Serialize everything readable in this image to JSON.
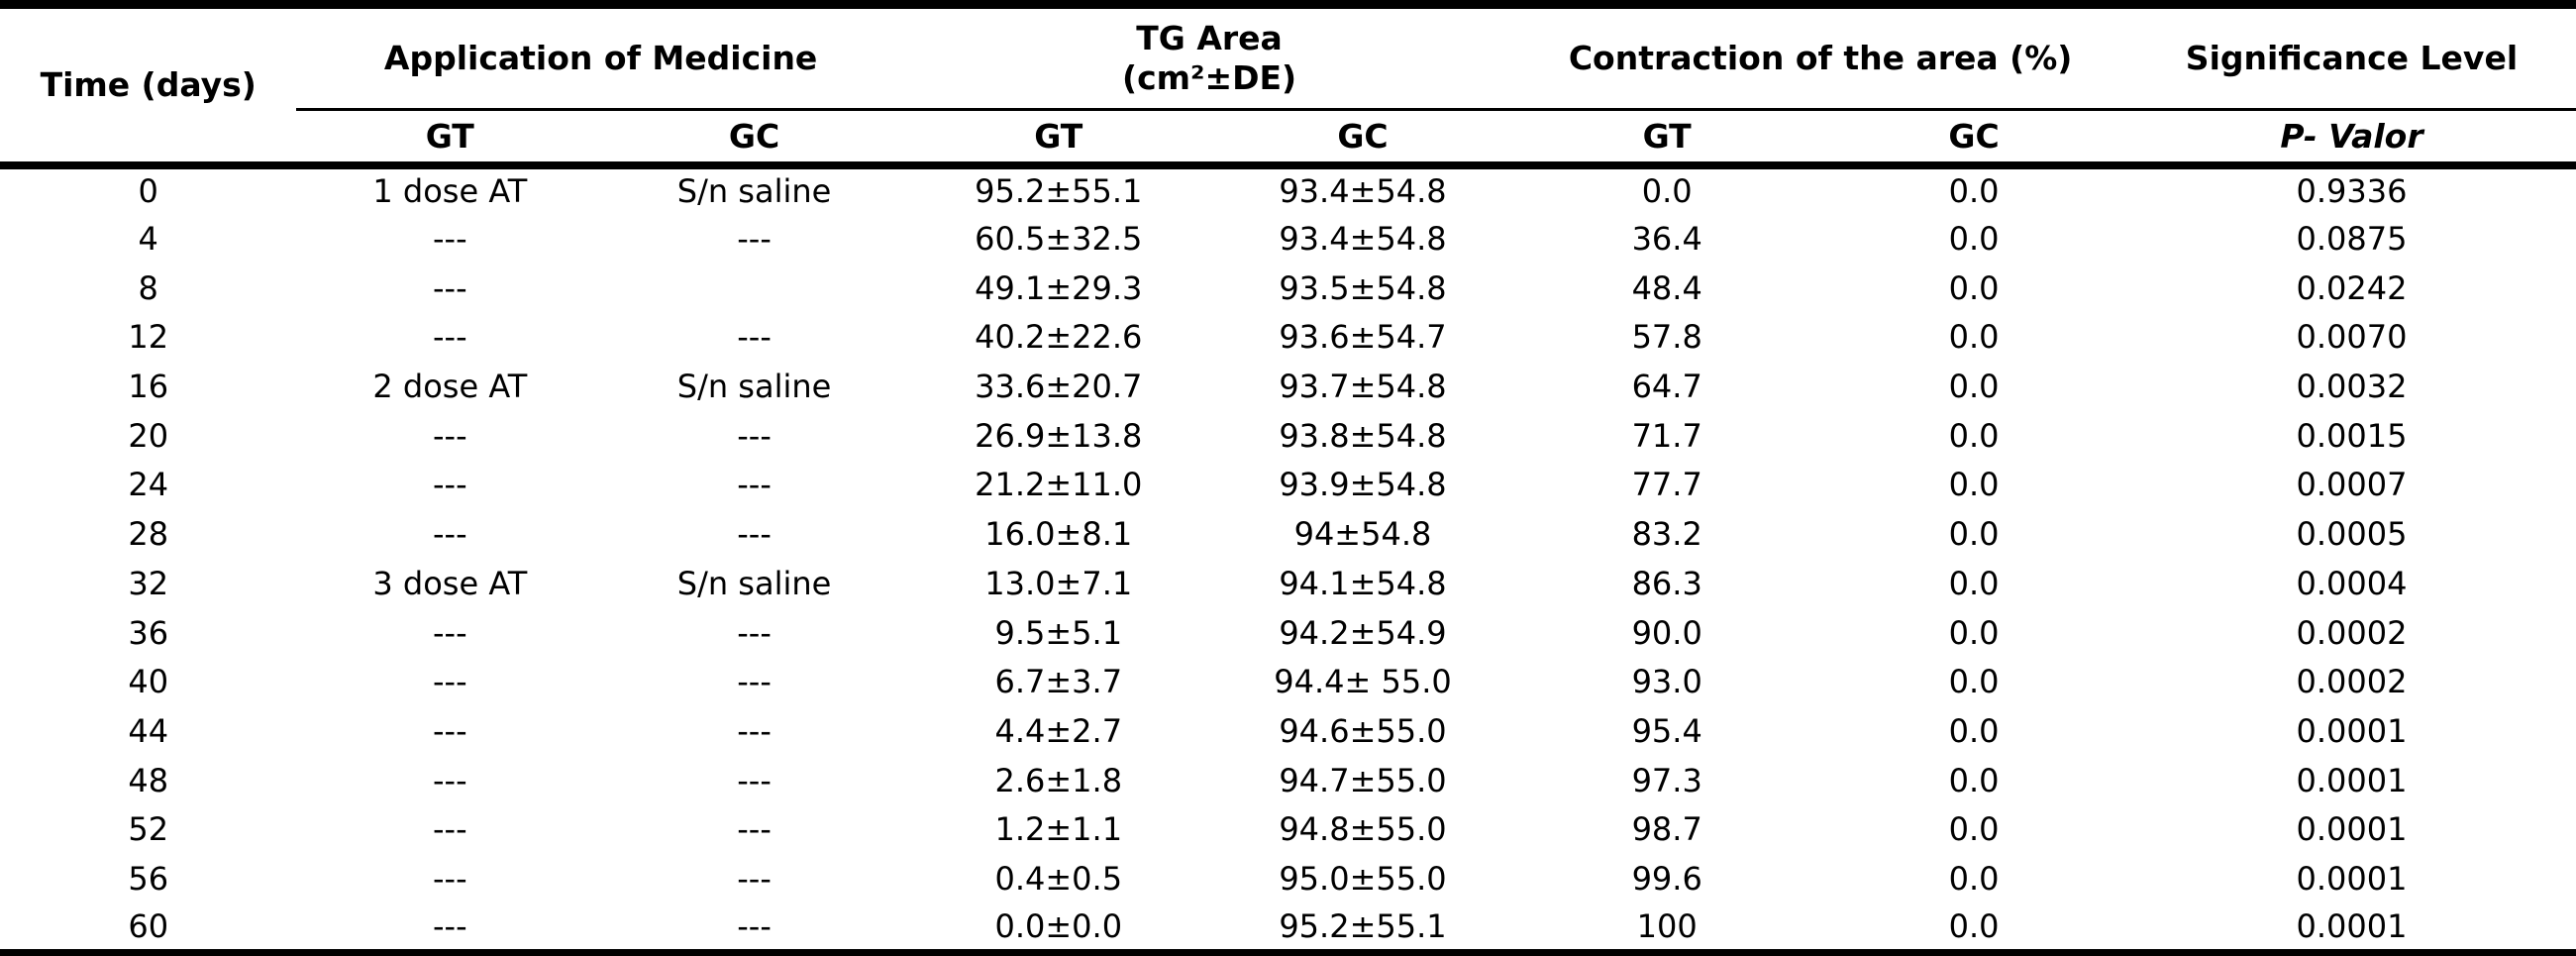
{
  "colors": {
    "text": "#000000",
    "background": "#ffffff",
    "rule": "#000000"
  },
  "table": {
    "header": {
      "time": "Time (days)",
      "application": "Application of Medicine",
      "tg_area_line1": "TG Area",
      "tg_area_line2": "(cm²±DE)",
      "contraction": "Contraction of the area (%)",
      "significance": "Significance Level"
    },
    "subheaders": [
      "GT",
      "GC",
      "GT",
      "GC",
      "GT",
      "GC",
      "P- Valor"
    ],
    "column_keys": [
      "time-days",
      "application-gt",
      "application-gc",
      "tg-area-gt",
      "tg-area-gc",
      "contraction-gt",
      "contraction-gc",
      "p-valor"
    ],
    "rows": [
      [
        "0",
        "1 dose AT",
        "S/n saline",
        "95.2±55.1",
        "93.4±54.8",
        "0.0",
        "0.0",
        "0.9336"
      ],
      [
        "4",
        "---",
        "---",
        "60.5±32.5",
        "93.4±54.8",
        "36.4",
        "0.0",
        "0.0875"
      ],
      [
        "8",
        "---",
        "",
        "49.1±29.3",
        "93.5±54.8",
        "48.4",
        "0.0",
        "0.0242"
      ],
      [
        "12",
        "---",
        "---",
        "40.2±22.6",
        "93.6±54.7",
        "57.8",
        "0.0",
        "0.0070"
      ],
      [
        "16",
        "2 dose AT",
        "S/n saline",
        "33.6±20.7",
        "93.7±54.8",
        "64.7",
        "0.0",
        "0.0032"
      ],
      [
        "20",
        "---",
        "---",
        "26.9±13.8",
        "93.8±54.8",
        "71.7",
        "0.0",
        "0.0015"
      ],
      [
        "24",
        "---",
        "---",
        "21.2±11.0",
        "93.9±54.8",
        "77.7",
        "0.0",
        "0.0007"
      ],
      [
        "28",
        "---",
        "---",
        "16.0±8.1",
        "94±54.8",
        "83.2",
        "0.0",
        "0.0005"
      ],
      [
        "32",
        "3 dose AT",
        "S/n saline",
        "13.0±7.1",
        "94.1±54.8",
        "86.3",
        "0.0",
        "0.0004"
      ],
      [
        "36",
        "---",
        "---",
        "9.5±5.1",
        "94.2±54.9",
        "90.0",
        "0.0",
        "0.0002"
      ],
      [
        "40",
        "---",
        "---",
        "6.7±3.7",
        "94.4± 55.0",
        "93.0",
        "0.0",
        "0.0002"
      ],
      [
        "44",
        "---",
        "---",
        "4.4±2.7",
        "94.6±55.0",
        "95.4",
        "0.0",
        "0.0001"
      ],
      [
        "48",
        "---",
        "---",
        "2.6±1.8",
        "94.7±55.0",
        "97.3",
        "0.0",
        "0.0001"
      ],
      [
        "52",
        "---",
        "---",
        "1.2±1.1",
        "94.8±55.0",
        "98.7",
        "0.0",
        "0.0001"
      ],
      [
        "56",
        "---",
        "---",
        "0.4±0.5",
        "95.0±55.0",
        "99.6",
        "0.0",
        "0.0001"
      ],
      [
        "60",
        "---",
        "---",
        "0.0±0.0",
        "95.2±55.1",
        "100",
        "0.0",
        "0.0001"
      ]
    ]
  }
}
